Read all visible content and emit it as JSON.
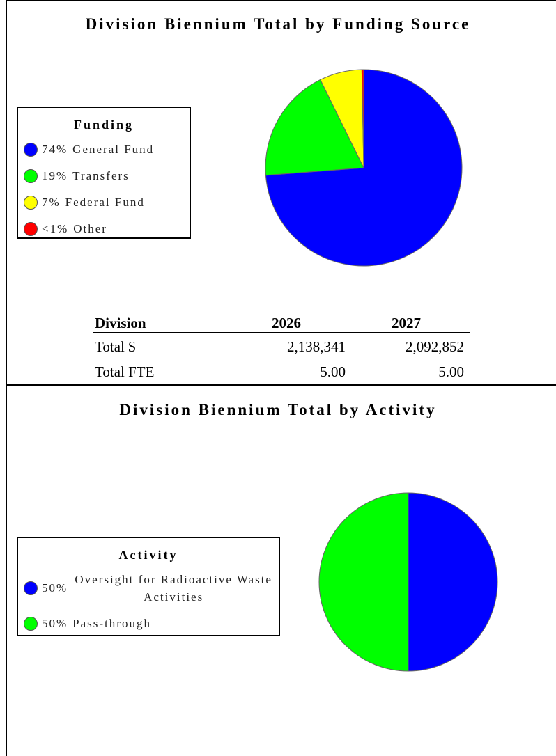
{
  "chart_data": [
    {
      "type": "pie",
      "title": "Division Biennium Total by Funding Source",
      "legend_title": "Funding",
      "categories": [
        "General Fund",
        "Transfers",
        "Federal Fund",
        "Other"
      ],
      "values": [
        74,
        19,
        7,
        0.3
      ],
      "value_labels": [
        "74%",
        "19%",
        "7%",
        "<1%"
      ],
      "colors": [
        "#0000ff",
        "#00ff00",
        "#ffff00",
        "#ff0000"
      ]
    },
    {
      "type": "pie",
      "title": "Division Biennium Total by Activity",
      "legend_title": "Activity",
      "categories": [
        "Oversight for Radioactive Waste Activities",
        "Pass-through"
      ],
      "values": [
        50,
        50
      ],
      "value_labels": [
        "50%",
        "50%"
      ],
      "colors": [
        "#0000ff",
        "#00ff00"
      ]
    }
  ],
  "table": {
    "columns": [
      "Division",
      "2026",
      "2027"
    ],
    "rows": [
      [
        "Total $",
        "2,138,341",
        "2,092,852"
      ],
      [
        "Total FTE",
        "5.00",
        "5.00"
      ]
    ]
  }
}
